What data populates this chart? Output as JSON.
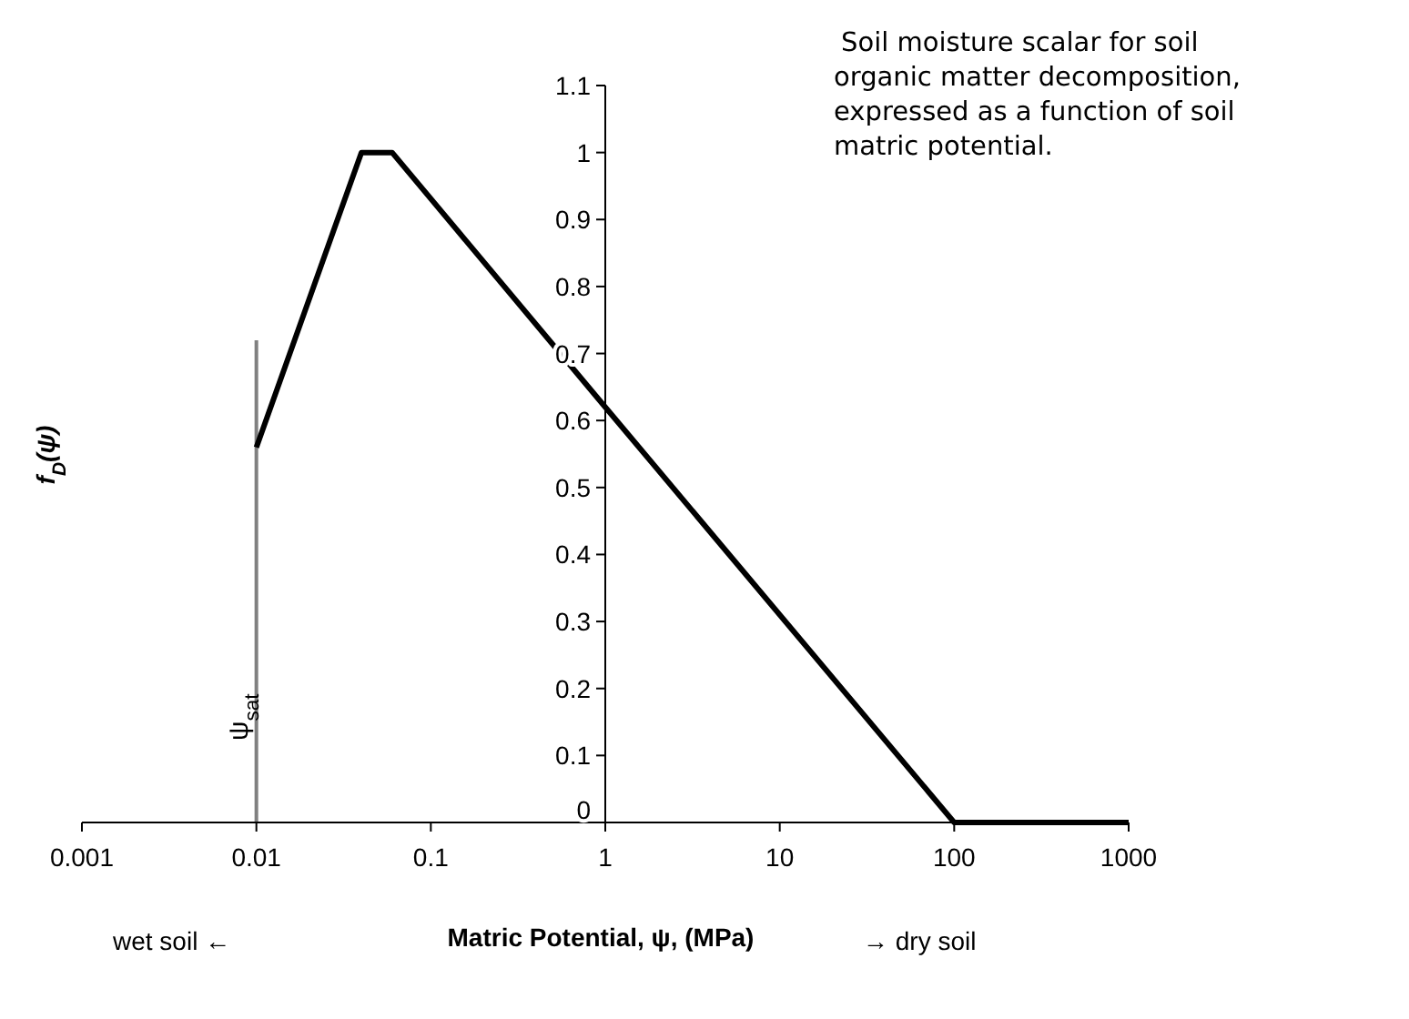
{
  "chart_data": {
    "type": "line",
    "xlabel": "Matric Potential,  ψ,  (MPa)",
    "ylabel": "f$_{D}$(ψ)",
    "annotations": [
      "Soil moisture scalar for soil organic matter decomposition, expressed as a function of soil matric potential.",
      "wet soil ←",
      "→ dry soil"
    ],
    "log": "x",
    "xlim": [
      0.001,
      1000
    ],
    "xticks": [
      0.001,
      0.01,
      0.1,
      1,
      10,
      100,
      1000
    ],
    "ylim": [
      0,
      1.1
    ],
    "yticks": [
      0,
      0.1,
      0.2,
      0.3,
      0.4,
      0.5,
      0.6,
      0.7,
      0.8,
      0.9,
      1,
      1.1
    ],
    "series": [
      {
        "color": "#000000",
        "x": [
          0.01,
          0.04,
          0.06,
          1,
          100,
          1000
        ],
        "values": [
          0.56,
          1,
          1,
          0.62,
          0,
          0
        ]
      }
    ],
    "ref_lines": [
      {
        "axis": "x",
        "value": 0.01,
        "label": "ψ$_{sat}$",
        "color": "#808080"
      }
    ],
    "grid": false,
    "marker": "none",
    "line_style": "solid"
  }
}
